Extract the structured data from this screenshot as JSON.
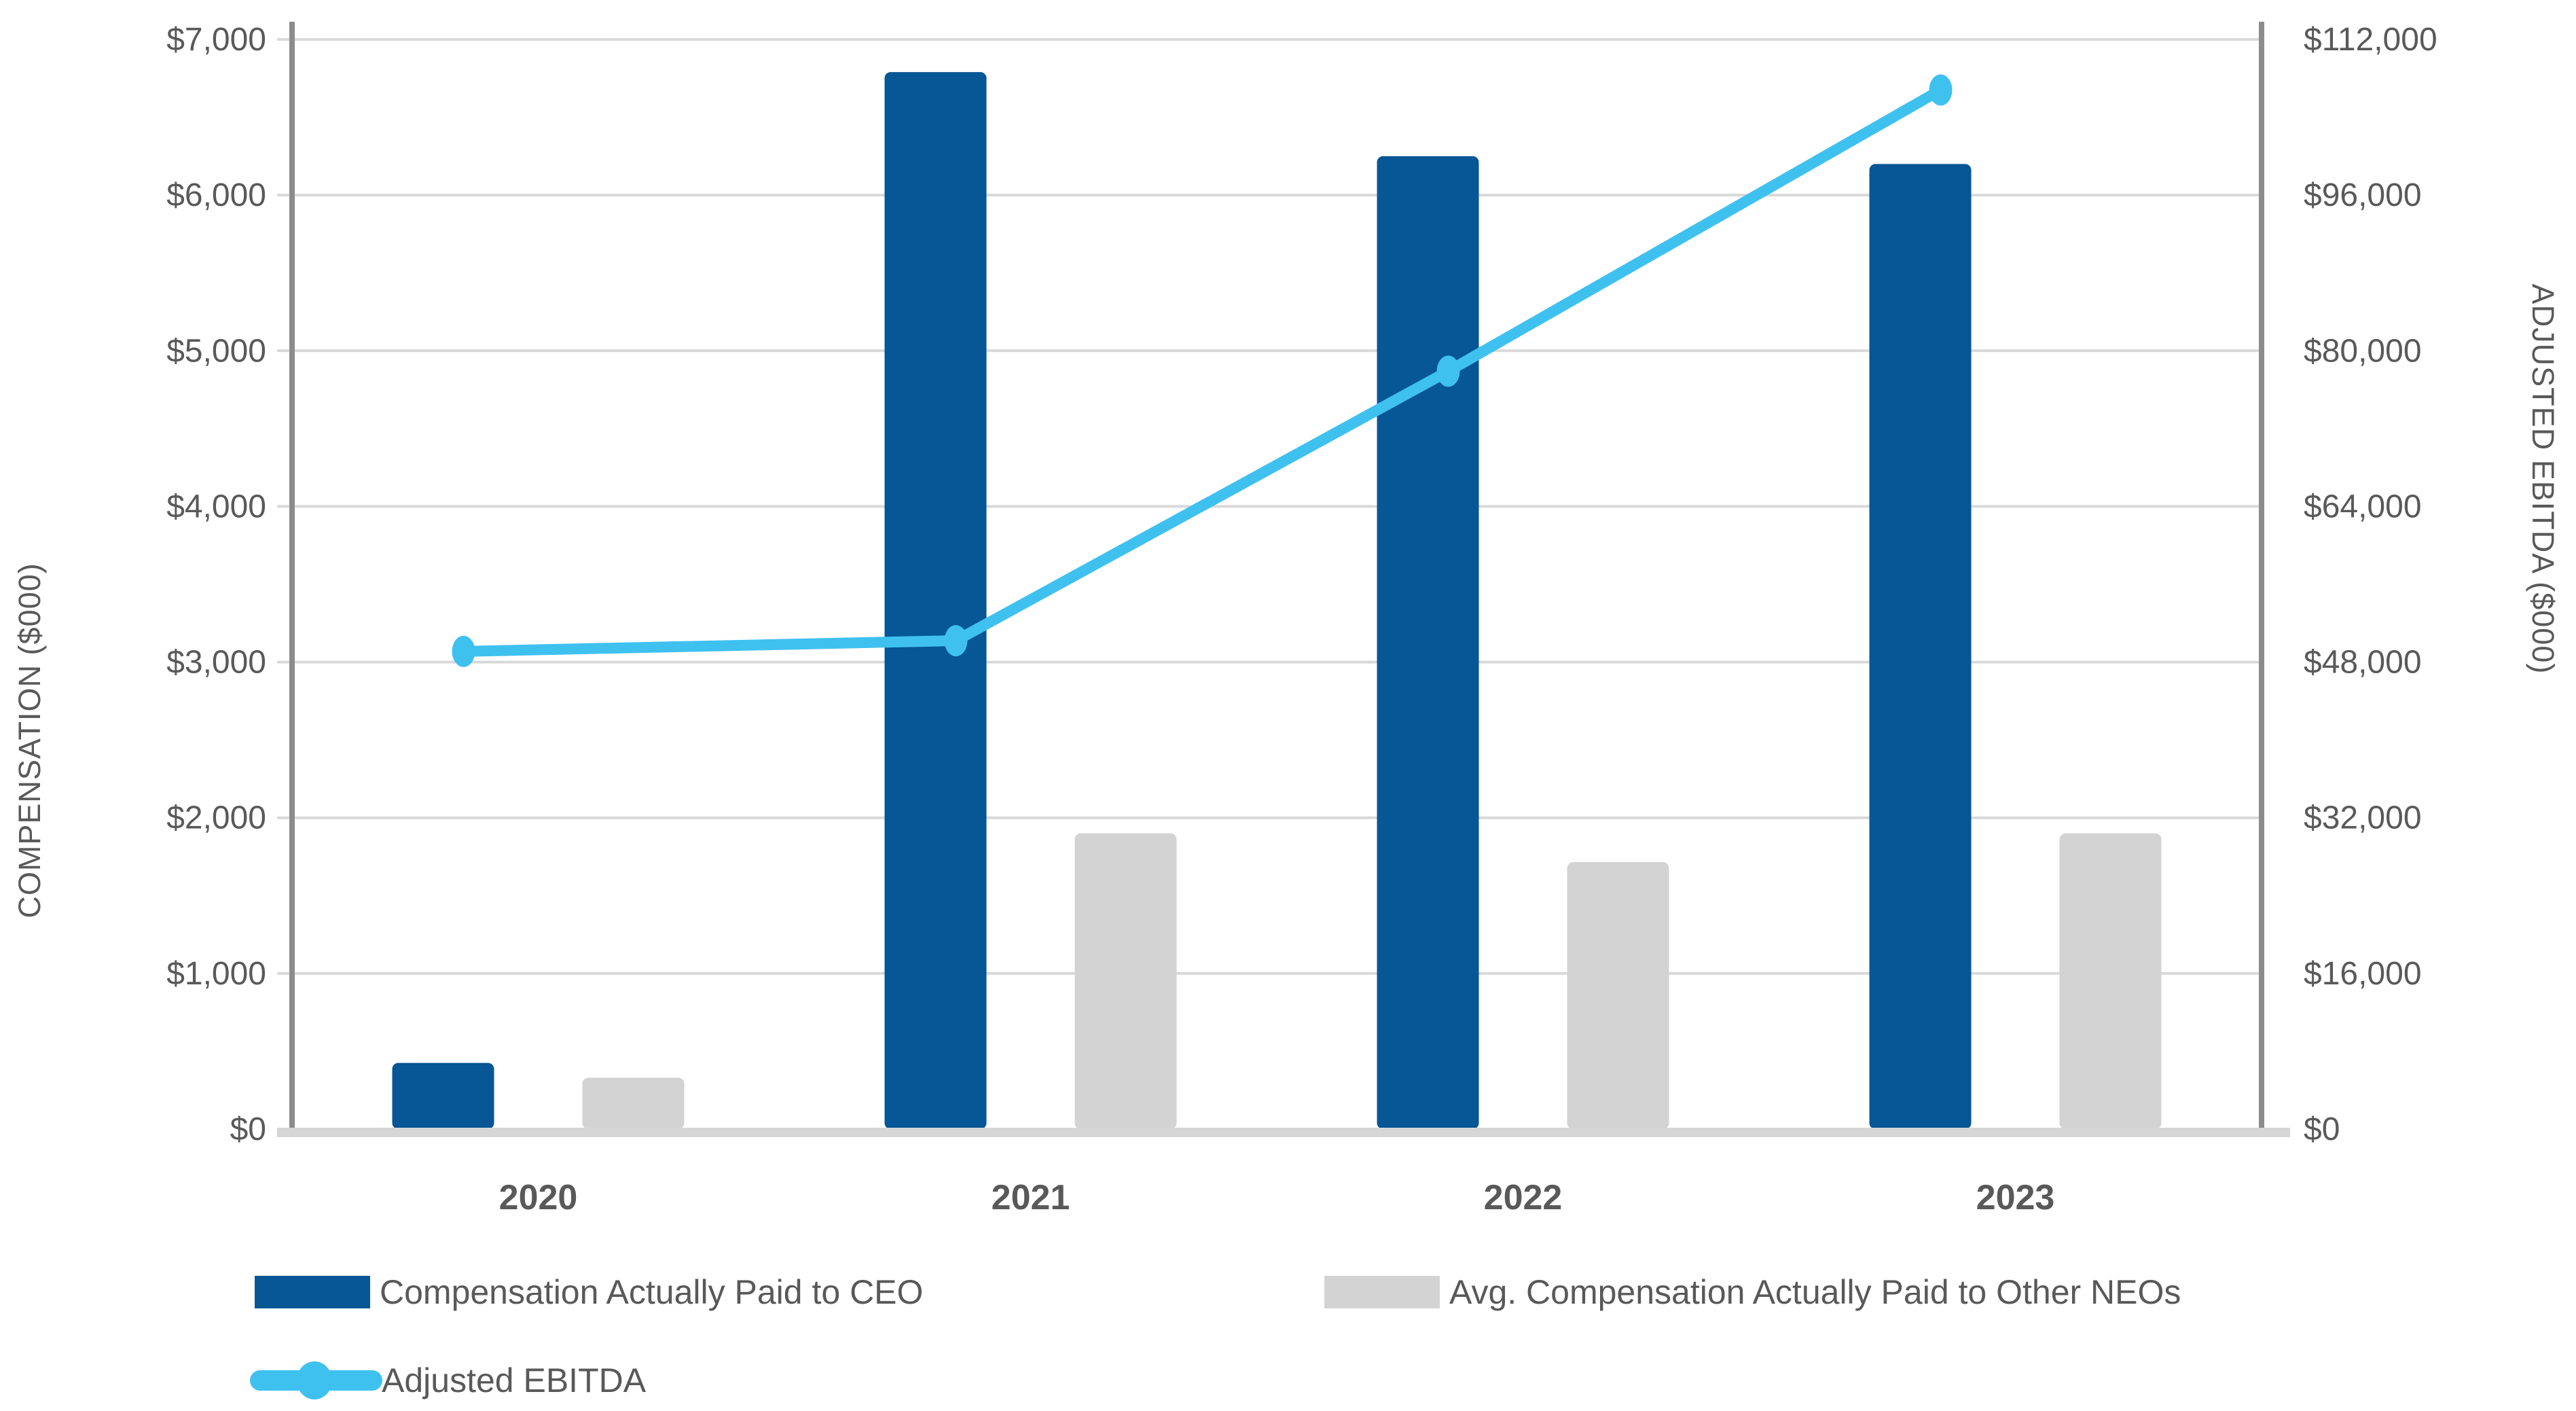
{
  "chart_data": {
    "type": "bar+line combo",
    "categories": [
      "2020",
      "2021",
      "2022",
      "2023"
    ],
    "series": [
      {
        "name": "Compensation Actually Paid to CEO",
        "type": "bar",
        "axis": "left",
        "color": "#075695",
        "values": [
          425,
          6790,
          6250,
          6200
        ]
      },
      {
        "name": "Avg. Compensation Actually Paid to Other NEOs",
        "type": "bar",
        "axis": "left",
        "color": "#D3D3D3",
        "values": [
          330,
          1900,
          1715,
          1900
        ]
      },
      {
        "name": "Adjusted EBITDA",
        "type": "line",
        "axis": "right",
        "color": "#3FC1F0",
        "values": [
          49100,
          50200,
          77900,
          106800
        ]
      }
    ],
    "left_axis": {
      "title": "COMPENSATION ($000)",
      "min": 0,
      "max": 7000,
      "step": 1000,
      "tick_labels": [
        "$0",
        "$1,000",
        "$2,000",
        "$3,000",
        "$4,000",
        "$5,000",
        "$6,000",
        "$7,000"
      ]
    },
    "right_axis": {
      "title": "ADJUSTED EBITDA ($000)",
      "min": 0,
      "max": 112000,
      "step": 16000,
      "tick_labels": [
        "$0",
        "$16,000",
        "$32,000",
        "$48,000",
        "$64,000",
        "$80,000",
        "$96,000",
        "$112,000"
      ]
    },
    "grid": true,
    "legend_position": "bottom-left two rows"
  },
  "legend": {
    "items": [
      {
        "label": "Compensation Actually Paid to CEO",
        "swatch": "bar",
        "color": "#075695"
      },
      {
        "label": "Avg. Compensation Actually Paid to Other NEOs",
        "swatch": "bar",
        "color": "#D3D3D3"
      },
      {
        "label": "Adjusted EBITDA",
        "swatch": "line-marker",
        "color": "#3FC1F0"
      }
    ]
  },
  "colors": {
    "bar_blue": "#075695",
    "bar_gray": "#D3D3D3",
    "line_blue": "#3FC1F0",
    "text_gray": "#595959",
    "gridline": "#D9D9D9",
    "axis_border": "#8C8C8C",
    "baseline": "#D6D6D6",
    "background": "#FFFFFF"
  }
}
